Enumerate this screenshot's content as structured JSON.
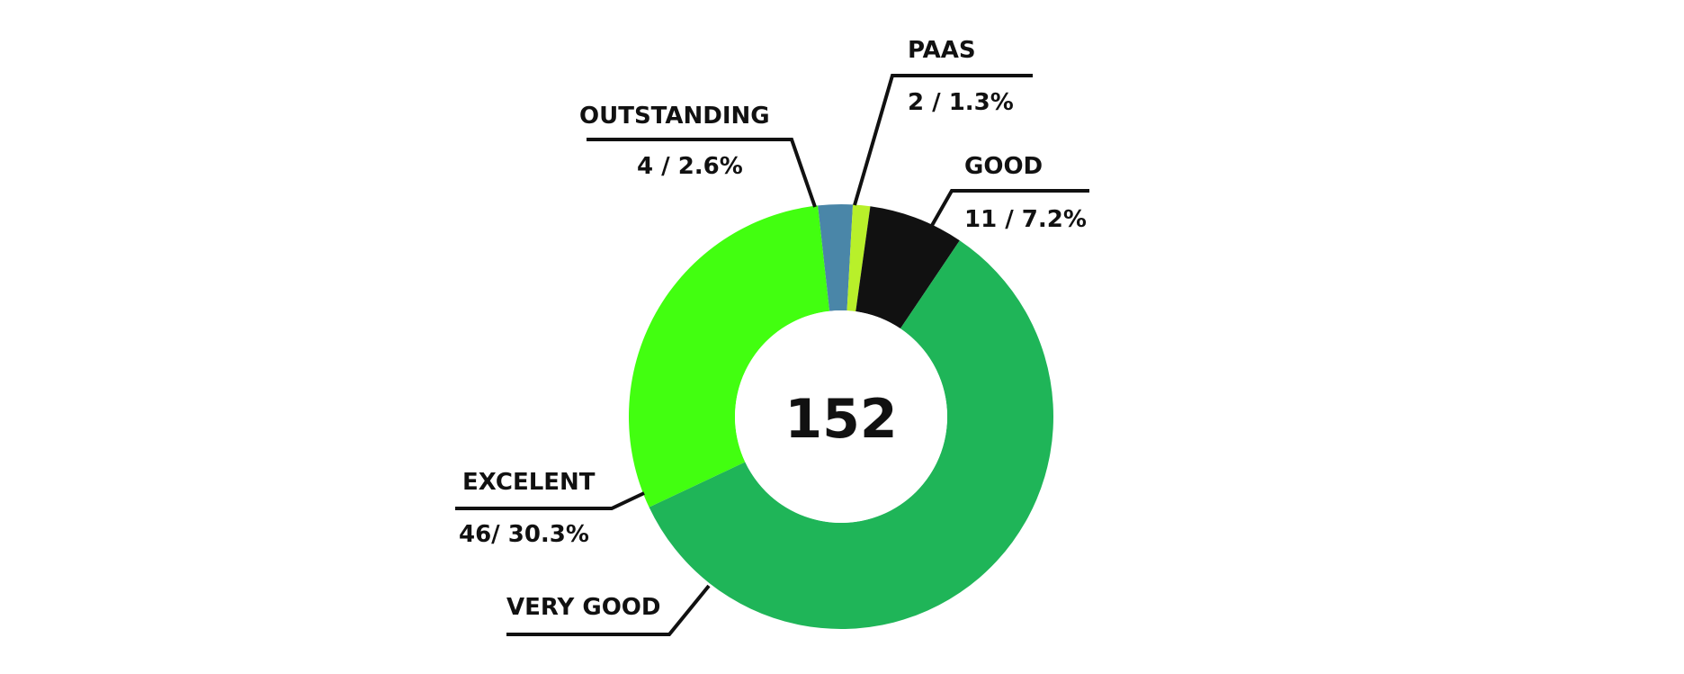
{
  "chart_data": {
    "type": "pie",
    "total": "152",
    "slices": [
      {
        "category": "OUTSTANDING",
        "count": 4,
        "percent": 2.6,
        "value_label": "4 / 2.6%",
        "color": "#4a86a8"
      },
      {
        "category": "PAAS",
        "count": 2,
        "percent": 1.3,
        "value_label": "2 / 1.3%",
        "color": "#b8f02a"
      },
      {
        "category": "GOOD",
        "count": 11,
        "percent": 7.2,
        "value_label": "11 / 7.2%",
        "color": "#111111"
      },
      {
        "category": "VERY GOOD",
        "count": 89,
        "percent": 58.6,
        "value_label": "",
        "color": "#1fb558"
      },
      {
        "category": "EXCELENT",
        "count": 46,
        "percent": 30.3,
        "value_label": "46/ 30.3%",
        "color": "#42ff10"
      }
    ]
  }
}
